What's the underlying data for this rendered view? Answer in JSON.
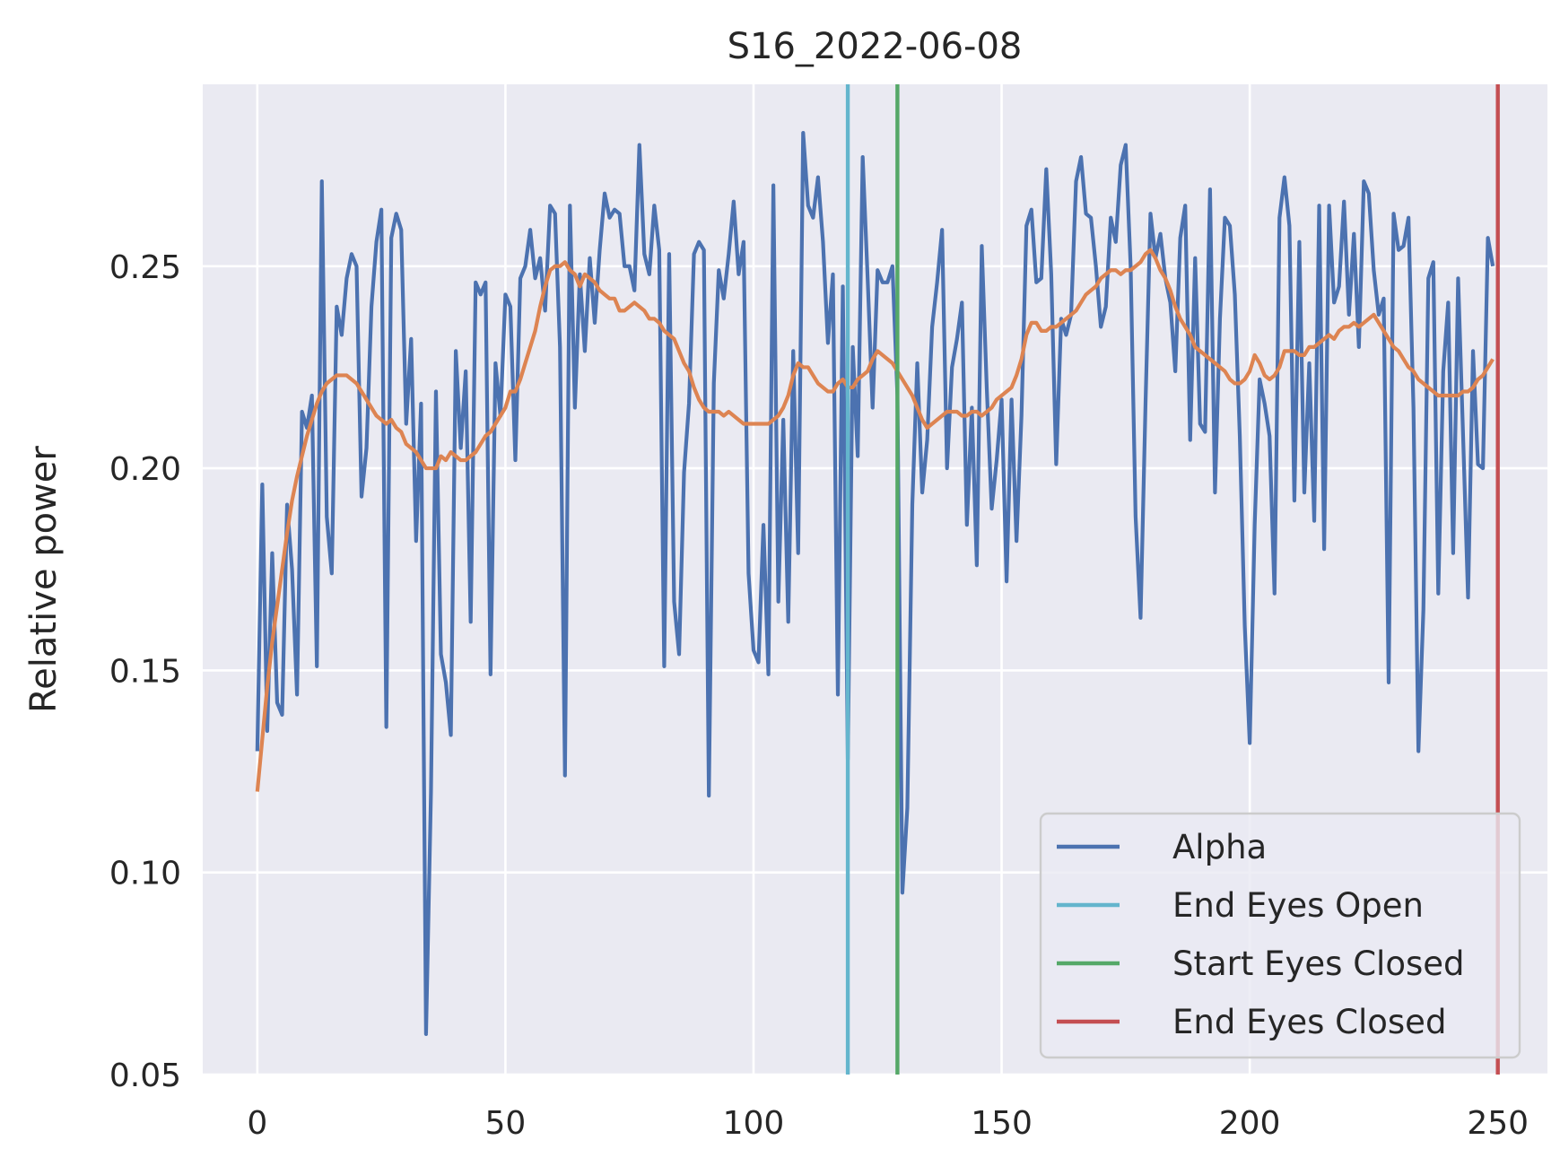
{
  "chart_data": {
    "type": "line",
    "title": "S16_2022-06-08",
    "xlabel": "",
    "ylabel": "Relative power",
    "xlim": [
      -11,
      260
    ],
    "ylim": [
      0.05,
      0.295
    ],
    "xticks": [
      0,
      50,
      100,
      150,
      200,
      250
    ],
    "xtick_labels": [
      "0",
      "50",
      "100",
      "150",
      "200",
      "250"
    ],
    "yticks": [
      0.05,
      0.1,
      0.15,
      0.2,
      0.25
    ],
    "ytick_labels": [
      "0.05",
      "0.10",
      "0.15",
      "0.20",
      "0.25"
    ],
    "grid": true,
    "legend_position": "lower-right",
    "series": [
      {
        "name": "Alpha",
        "color": "#4c72b0",
        "x_start": 0,
        "x_step": 1,
        "values": [
          0.13,
          0.196,
          0.135,
          0.179,
          0.142,
          0.139,
          0.191,
          0.175,
          0.144,
          0.214,
          0.21,
          0.218,
          0.151,
          0.271,
          0.188,
          0.174,
          0.24,
          0.233,
          0.247,
          0.253,
          0.25,
          0.193,
          0.205,
          0.24,
          0.256,
          0.264,
          0.136,
          0.257,
          0.263,
          0.259,
          0.211,
          0.232,
          0.182,
          0.216,
          0.06,
          0.12,
          0.219,
          0.154,
          0.147,
          0.134,
          0.229,
          0.205,
          0.224,
          0.162,
          0.246,
          0.243,
          0.246,
          0.149,
          0.226,
          0.213,
          0.243,
          0.24,
          0.202,
          0.247,
          0.25,
          0.259,
          0.247,
          0.252,
          0.239,
          0.265,
          0.263,
          0.23,
          0.124,
          0.265,
          0.215,
          0.248,
          0.229,
          0.252,
          0.236,
          0.254,
          0.268,
          0.262,
          0.264,
          0.263,
          0.25,
          0.25,
          0.244,
          0.28,
          0.253,
          0.248,
          0.265,
          0.254,
          0.151,
          0.253,
          0.167,
          0.154,
          0.199,
          0.216,
          0.253,
          0.256,
          0.254,
          0.119,
          0.221,
          0.249,
          0.242,
          0.253,
          0.266,
          0.248,
          0.256,
          0.174,
          0.155,
          0.152,
          0.186,
          0.149,
          0.27,
          0.167,
          0.212,
          0.162,
          0.229,
          0.179,
          0.283,
          0.265,
          0.262,
          0.272,
          0.256,
          0.231,
          0.248,
          0.144,
          0.245,
          0.128,
          0.23,
          0.203,
          0.277,
          0.247,
          0.215,
          0.249,
          0.246,
          0.246,
          0.25,
          0.218,
          0.095,
          0.116,
          0.191,
          0.226,
          0.194,
          0.207,
          0.235,
          0.246,
          0.259,
          0.2,
          0.225,
          0.232,
          0.241,
          0.186,
          0.215,
          0.176,
          0.255,
          0.22,
          0.19,
          0.202,
          0.217,
          0.172,
          0.217,
          0.182,
          0.213,
          0.26,
          0.264,
          0.246,
          0.247,
          0.274,
          0.248,
          0.201,
          0.237,
          0.233,
          0.238,
          0.271,
          0.277,
          0.263,
          0.262,
          0.25,
          0.235,
          0.24,
          0.262,
          0.256,
          0.275,
          0.28,
          0.25,
          0.188,
          0.163,
          0.216,
          0.263,
          0.252,
          0.258,
          0.247,
          0.241,
          0.224,
          0.257,
          0.265,
          0.207,
          0.252,
          0.211,
          0.209,
          0.269,
          0.194,
          0.237,
          0.262,
          0.26,
          0.243,
          0.208,
          0.161,
          0.132,
          0.186,
          0.222,
          0.216,
          0.208,
          0.169,
          0.262,
          0.272,
          0.26,
          0.192,
          0.256,
          0.194,
          0.226,
          0.187,
          0.265,
          0.18,
          0.265,
          0.241,
          0.245,
          0.266,
          0.238,
          0.258,
          0.23,
          0.271,
          0.268,
          0.249,
          0.238,
          0.242,
          0.147,
          0.263,
          0.254,
          0.255,
          0.262,
          0.215,
          0.13,
          0.165,
          0.247,
          0.251,
          0.169,
          0.224,
          0.241,
          0.179,
          0.247,
          0.208,
          0.168,
          0.229,
          0.201,
          0.2,
          0.257,
          0.25
        ]
      },
      {
        "name": "",
        "color": "#dd8452",
        "x_start": 0,
        "x_step": 1,
        "values": [
          0.12,
          0.133,
          0.146,
          0.157,
          0.166,
          0.175,
          0.184,
          0.192,
          0.198,
          0.203,
          0.208,
          0.212,
          0.216,
          0.219,
          0.221,
          0.222,
          0.223,
          0.223,
          0.223,
          0.222,
          0.221,
          0.219,
          0.217,
          0.215,
          0.213,
          0.212,
          0.211,
          0.212,
          0.21,
          0.209,
          0.206,
          0.205,
          0.204,
          0.202,
          0.2,
          0.2,
          0.2,
          0.203,
          0.202,
          0.204,
          0.203,
          0.202,
          0.202,
          0.203,
          0.204,
          0.206,
          0.208,
          0.209,
          0.211,
          0.213,
          0.215,
          0.219,
          0.219,
          0.222,
          0.226,
          0.23,
          0.234,
          0.24,
          0.245,
          0.249,
          0.25,
          0.25,
          0.251,
          0.249,
          0.248,
          0.245,
          0.248,
          0.247,
          0.246,
          0.244,
          0.243,
          0.242,
          0.242,
          0.239,
          0.239,
          0.24,
          0.241,
          0.24,
          0.239,
          0.237,
          0.237,
          0.236,
          0.234,
          0.233,
          0.232,
          0.229,
          0.226,
          0.224,
          0.22,
          0.217,
          0.215,
          0.214,
          0.214,
          0.214,
          0.213,
          0.214,
          0.213,
          0.212,
          0.211,
          0.211,
          0.211,
          0.211,
          0.211,
          0.211,
          0.212,
          0.213,
          0.215,
          0.218,
          0.223,
          0.226,
          0.225,
          0.225,
          0.223,
          0.221,
          0.22,
          0.219,
          0.219,
          0.221,
          0.222,
          0.22,
          0.22,
          0.222,
          0.223,
          0.224,
          0.227,
          0.229,
          0.228,
          0.227,
          0.226,
          0.224,
          0.222,
          0.22,
          0.218,
          0.215,
          0.212,
          0.21,
          0.211,
          0.212,
          0.213,
          0.214,
          0.214,
          0.214,
          0.213,
          0.213,
          0.214,
          0.214,
          0.213,
          0.214,
          0.215,
          0.217,
          0.218,
          0.219,
          0.22,
          0.223,
          0.227,
          0.233,
          0.236,
          0.236,
          0.234,
          0.234,
          0.235,
          0.235,
          0.236,
          0.237,
          0.238,
          0.239,
          0.241,
          0.243,
          0.244,
          0.245,
          0.247,
          0.248,
          0.249,
          0.249,
          0.248,
          0.249,
          0.249,
          0.25,
          0.251,
          0.253,
          0.254,
          0.252,
          0.249,
          0.247,
          0.244,
          0.24,
          0.237,
          0.235,
          0.233,
          0.23,
          0.229,
          0.228,
          0.227,
          0.226,
          0.225,
          0.224,
          0.222,
          0.221,
          0.221,
          0.222,
          0.224,
          0.228,
          0.226,
          0.223,
          0.222,
          0.223,
          0.225,
          0.229,
          0.229,
          0.229,
          0.228,
          0.228,
          0.23,
          0.23,
          0.231,
          0.232,
          0.233,
          0.232,
          0.234,
          0.235,
          0.235,
          0.236,
          0.235,
          0.236,
          0.237,
          0.238,
          0.236,
          0.234,
          0.232,
          0.23,
          0.229,
          0.227,
          0.225,
          0.224,
          0.222,
          0.221,
          0.22,
          0.219,
          0.218,
          0.218,
          0.218,
          0.218,
          0.218,
          0.219,
          0.219,
          0.22,
          0.222,
          0.223,
          0.225,
          0.227
        ]
      }
    ],
    "vlines": [
      {
        "name": "End Eyes Open",
        "x": 119,
        "color": "#64b5cd"
      },
      {
        "name": "Start Eyes Closed",
        "x": 129,
        "color": "#55a868"
      },
      {
        "name": "End Eyes Closed",
        "x": 250,
        "color": "#c44e52"
      }
    ],
    "legend": [
      {
        "label": "Alpha",
        "color": "#4c72b0"
      },
      {
        "label": "End Eyes Open",
        "color": "#64b5cd"
      },
      {
        "label": "Start Eyes Closed",
        "color": "#55a868"
      },
      {
        "label": "End Eyes Closed",
        "color": "#c44e52"
      }
    ],
    "colors": {
      "plot_background": "#eaeaf2",
      "grid": "#ffffff",
      "text": "#262626"
    }
  }
}
